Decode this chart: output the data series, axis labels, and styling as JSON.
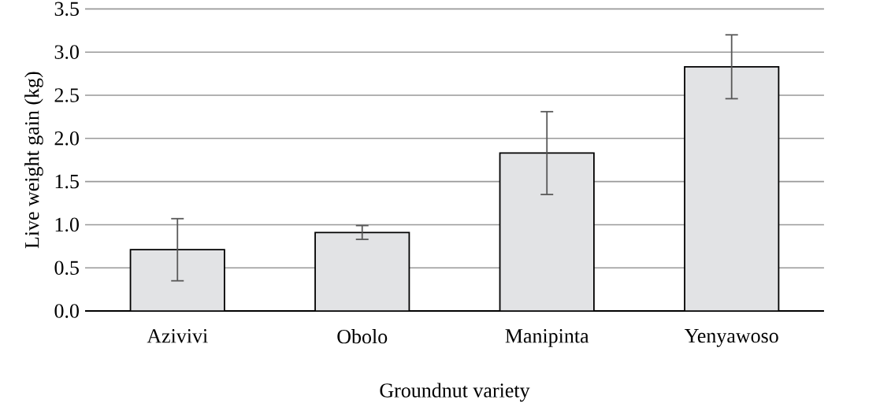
{
  "chart_data": {
    "type": "bar",
    "xlabel": "Groundnut variety",
    "ylabel": "Live weight gain (kg)",
    "categories": [
      "Azivivi",
      "Obolo",
      "Manipinta",
      "Yenyawoso"
    ],
    "values": [
      0.71,
      0.91,
      1.83,
      2.83
    ],
    "errors": [
      0.36,
      0.08,
      0.48,
      0.37
    ],
    "color": "#e2e3e5",
    "ylim": [
      0,
      3.5
    ],
    "yticks": [
      {
        "value": 0,
        "label": "0.0"
      },
      {
        "value": 0.5,
        "label": "0.5"
      },
      {
        "value": 1,
        "label": "1.0"
      },
      {
        "value": 1.5,
        "label": "1.5"
      },
      {
        "value": 2,
        "label": "2.0"
      },
      {
        "value": 2.5,
        "label": "2.5"
      },
      {
        "value": 3,
        "label": "3.0"
      },
      {
        "value": 3.5,
        "label": "3.5"
      }
    ],
    "grid": "y"
  }
}
